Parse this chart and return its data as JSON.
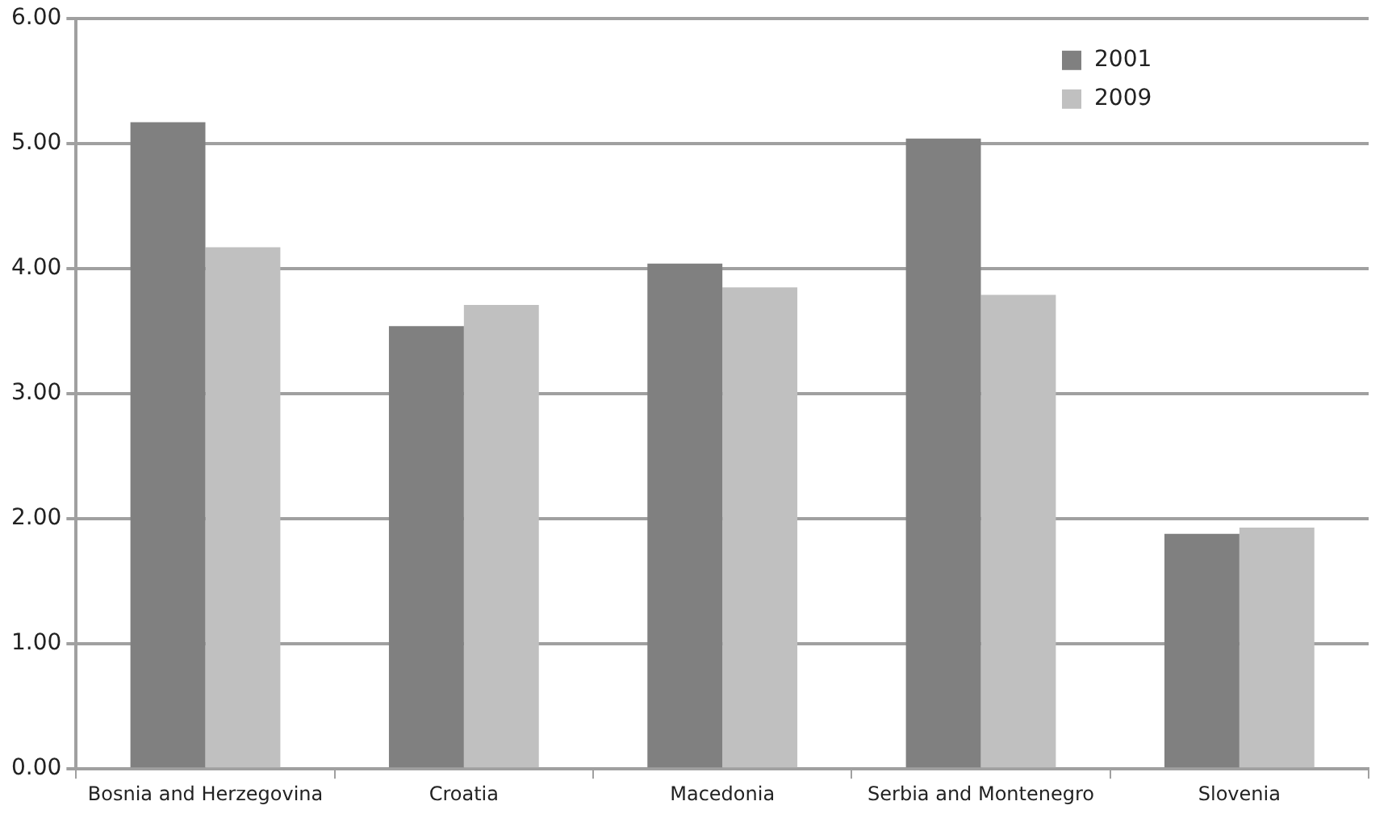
{
  "chart_data": {
    "type": "bar",
    "categories": [
      "Bosnia and Herzegovina",
      "Croatia",
      "Macedonia",
      "Serbia and Montenegro",
      "Slovenia"
    ],
    "series": [
      {
        "name": "2001",
        "color": "#808080",
        "values": [
          5.17,
          3.54,
          4.04,
          5.04,
          1.88
        ]
      },
      {
        "name": "2009",
        "color": "#c0c0c0",
        "values": [
          4.17,
          3.71,
          3.85,
          3.79,
          1.93
        ]
      }
    ],
    "ylim": [
      0,
      6
    ],
    "yticks": [
      {
        "value": 0,
        "label": "0.00"
      },
      {
        "value": 1,
        "label": "1.00"
      },
      {
        "value": 2,
        "label": "2.00"
      },
      {
        "value": 3,
        "label": "3.00"
      },
      {
        "value": 4,
        "label": "4.00"
      },
      {
        "value": 5,
        "label": "5.00"
      },
      {
        "value": 6,
        "label": "6.00"
      }
    ],
    "grid": "y",
    "legend": "top right"
  }
}
